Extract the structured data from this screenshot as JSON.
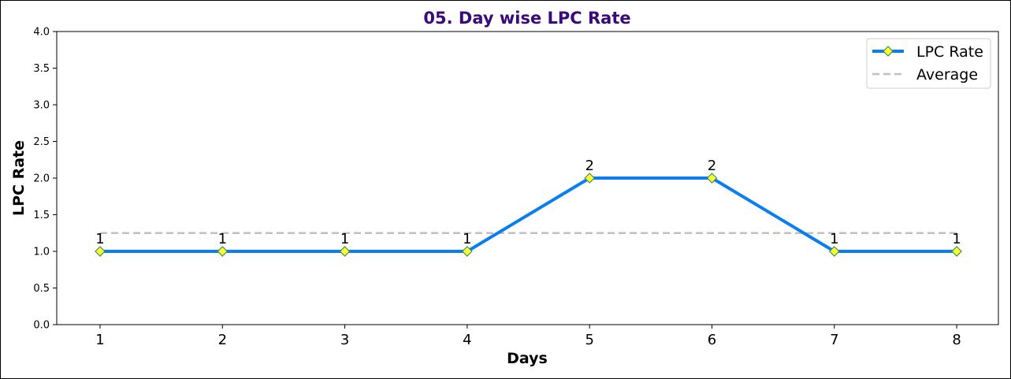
{
  "chart_data": {
    "type": "line",
    "title": "05. Day wise LPC Rate",
    "xlabel": "Days",
    "ylabel": "LPC Rate",
    "categories": [
      "1",
      "2",
      "3",
      "4",
      "5",
      "6",
      "7",
      "8"
    ],
    "x": [
      1,
      2,
      3,
      4,
      5,
      6,
      7,
      8
    ],
    "ylim": [
      0,
      4.0
    ],
    "yticks": [
      "0.0",
      "0.5",
      "1.0",
      "1.5",
      "2.0",
      "2.5",
      "3.0",
      "3.5",
      "4.0"
    ],
    "series": [
      {
        "name": "LPC Rate",
        "values": [
          1,
          1,
          1,
          1,
          2,
          2,
          1,
          1
        ],
        "data_labels": [
          "1",
          "1",
          "1",
          "1",
          "2",
          "2",
          "1",
          "1"
        ],
        "line_color": "#0a7ef0",
        "marker": "diamond",
        "marker_fill": "#ffff33"
      },
      {
        "name": "Average",
        "values": [
          1.25,
          1.25,
          1.25,
          1.25,
          1.25,
          1.25,
          1.25,
          1.25
        ],
        "line_color": "#c0c0c0",
        "line_style": "dashed"
      }
    ],
    "legend_position": "top-right",
    "grid": false,
    "title_color": "#3a0a78"
  }
}
